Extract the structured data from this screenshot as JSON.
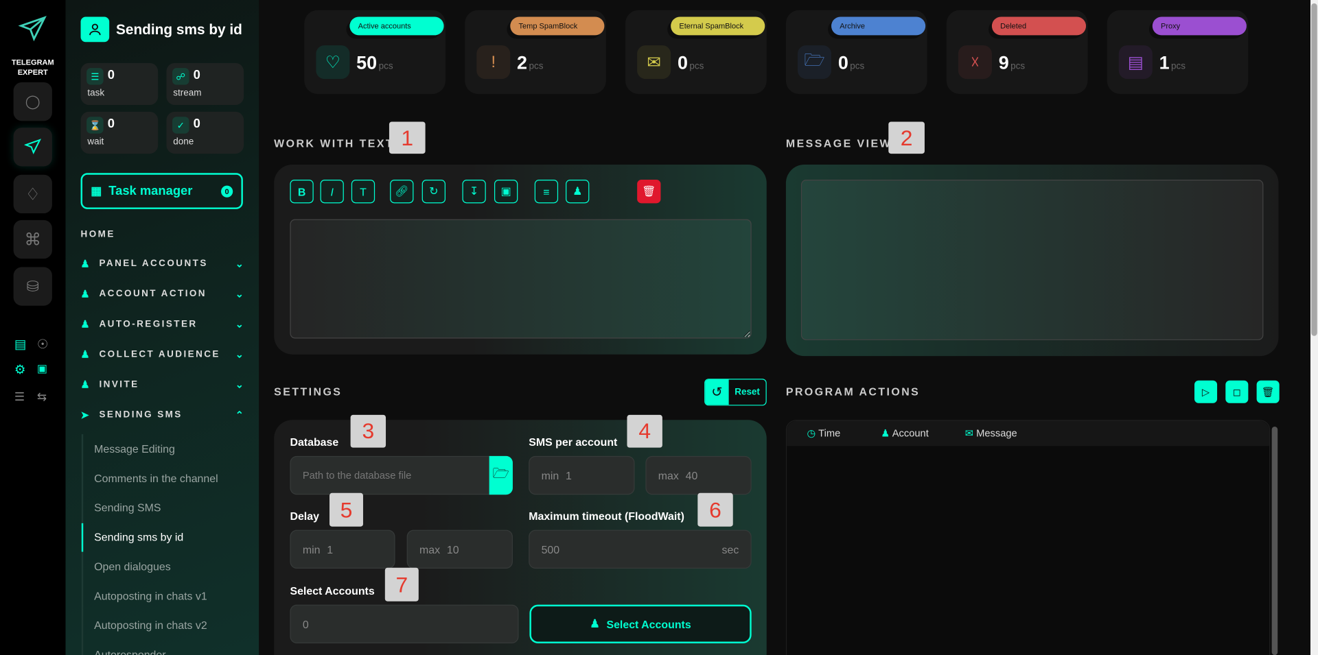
{
  "brand": {
    "name_line1": "TELEGRAM",
    "name_line2": "EXPERT"
  },
  "sidebar": {
    "title": "Sending sms by id",
    "stats": [
      {
        "value": "0",
        "label": "task"
      },
      {
        "value": "0",
        "label": "stream"
      },
      {
        "value": "0",
        "label": "wait"
      },
      {
        "value": "0",
        "label": "done"
      }
    ],
    "task_manager": {
      "label": "Task manager",
      "count": "0"
    },
    "home": "HOME",
    "menu": [
      {
        "label": "PANEL ACCOUNTS",
        "icon": "users-icon"
      },
      {
        "label": "ACCOUNT ACTION",
        "icon": "user-icon"
      },
      {
        "label": "AUTO-REGISTER",
        "icon": "user-plus-icon"
      },
      {
        "label": "COLLECT AUDIENCE",
        "icon": "user-list-icon"
      },
      {
        "label": "INVITE",
        "icon": "user-list-icon"
      },
      {
        "label": "SENDING SMS",
        "icon": "send-icon",
        "expanded": true
      }
    ],
    "submenu": [
      "Message Editing",
      "Comments in the channel",
      "Sending SMS",
      "Sending sms by id",
      "Open dialogues",
      "Autoposting in chats v1",
      "Autoposting in chats v2",
      "Autoresponder"
    ],
    "active_sub": "Sending sms by id"
  },
  "cards": [
    {
      "label": "Active accounts",
      "value": "50",
      "unit": "pcs",
      "color": "#00ffd1",
      "icon": "user-heart-icon"
    },
    {
      "label": "Temp SpamBlock",
      "value": "2",
      "unit": "pcs",
      "color": "#d38c50",
      "icon": "warning-octagon-icon"
    },
    {
      "label": "Eternal SpamBlock",
      "value": "0",
      "unit": "pcs",
      "color": "#d4cb4c",
      "icon": "mail-warning-icon"
    },
    {
      "label": "Archive",
      "value": "0",
      "unit": "pcs",
      "color": "#4d82d1",
      "icon": "folder-user-icon"
    },
    {
      "label": "Deleted",
      "value": "9",
      "unit": "pcs",
      "color": "#d35050",
      "icon": "user-x-icon"
    },
    {
      "label": "Proxy",
      "value": "1",
      "unit": "pcs",
      "color": "#9b4fd1",
      "icon": "proxy-icon"
    }
  ],
  "work_with_text": {
    "title": "WORK WITH TEXT",
    "badge": "1",
    "text": ""
  },
  "message_view": {
    "title": "MESSAGE VIEW",
    "badge": "2"
  },
  "settings": {
    "title": "SETTINGS",
    "reset": "Reset",
    "database": {
      "label": "Database",
      "badge": "3",
      "placeholder": "Path to the database file"
    },
    "sms_per_account": {
      "label": "SMS per account",
      "badge": "4",
      "min_label": "min",
      "min": "1",
      "max_label": "max",
      "max": "40"
    },
    "delay": {
      "label": "Delay",
      "badge": "5",
      "min_label": "min",
      "min": "1",
      "max_label": "max",
      "max": "10"
    },
    "timeout": {
      "label": "Maximum timeout (FloodWait)",
      "badge": "6",
      "value": "500",
      "unit": "sec"
    },
    "select_accounts": {
      "label": "Select Accounts",
      "badge": "7",
      "value": "0",
      "button": "Select Accounts"
    }
  },
  "program_actions": {
    "title": "PROGRAM ACTIONS",
    "columns": [
      "Time",
      "Account",
      "Message"
    ]
  }
}
